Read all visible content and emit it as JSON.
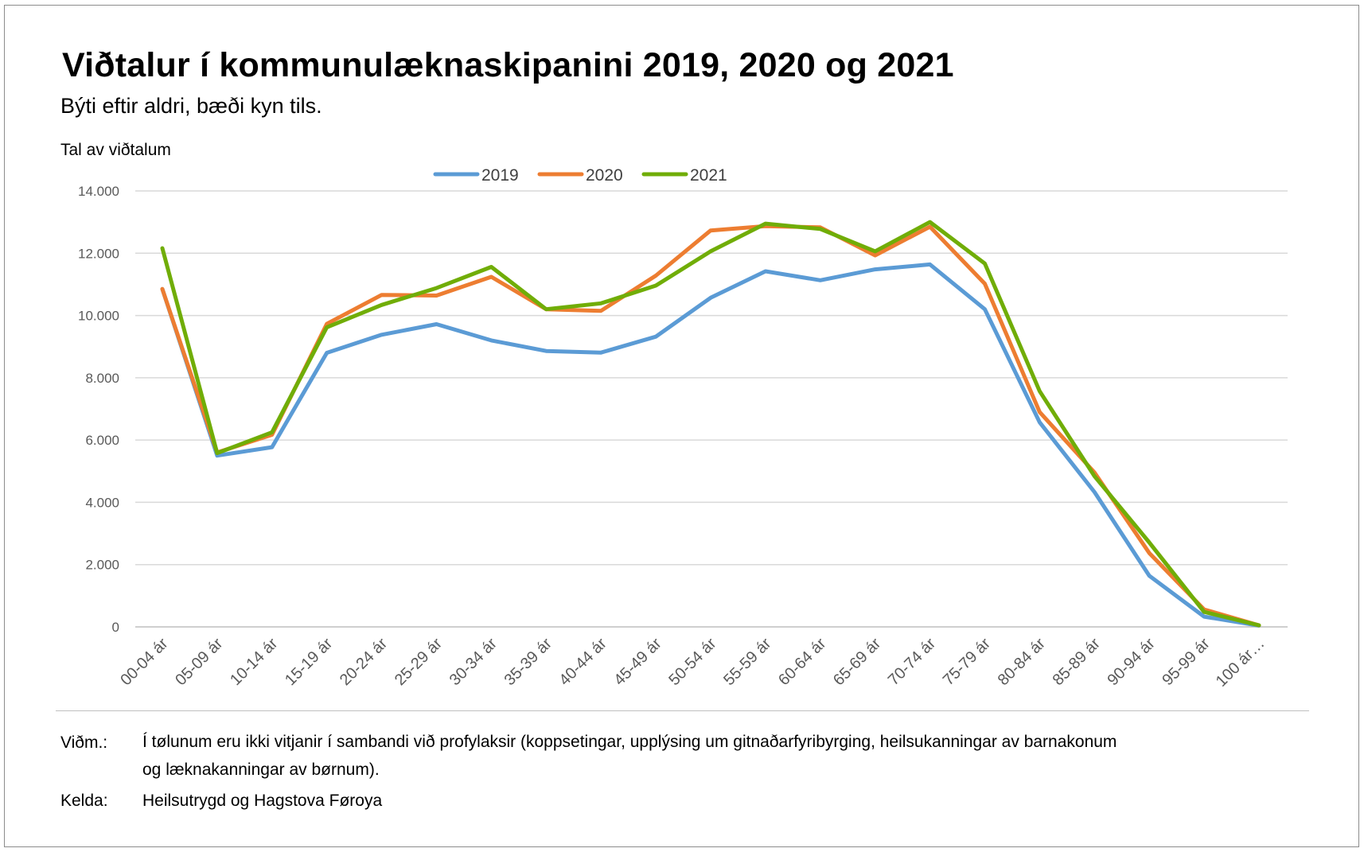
{
  "header": {
    "title": "Viðtalur í kommunulæknaskipanini 2019, 2020 og 2021",
    "subtitle": "Býti eftir aldri, bæði kyn tils."
  },
  "footer": {
    "note_label": "Viðm.:",
    "note_text": "Í tølunum eru ikki vitjanir í sambandi við profylaksir (koppsetingar, upplýsing um gitnaðarfyribyrging, heilsukanningar av barnakonum og læknakanningar av børnum).",
    "source_label": "Kelda:",
    "source_text": "Heilsutrygd og Hagstova Føroya"
  },
  "chart_data": {
    "type": "line",
    "title": "Viðtalur í kommunulæknaskipanini 2019, 2020 og 2021",
    "subtitle": "Býti eftir aldri, bæði kyn tils.",
    "ylabel": "Tal av viðtalum",
    "xlabel": "",
    "ylim": [
      0,
      14000
    ],
    "yticks": [
      0,
      2000,
      4000,
      6000,
      8000,
      10000,
      12000,
      14000
    ],
    "ytick_labels": [
      "0",
      "2.000",
      "4.000",
      "6.000",
      "8.000",
      "10.000",
      "12.000",
      "14.000"
    ],
    "grid": true,
    "legend_position": "top",
    "categories": [
      "00-04 ár",
      "05-09 ár",
      "10-14 ár",
      "15-19 ár",
      "20-24 ár",
      "25-29 ár",
      "30-34 ár",
      "35-39 ár",
      "40-44 ár",
      "45-49 ár",
      "50-54 ár",
      "55-59 ár",
      "60-64 ár",
      "65-69 ár",
      "70-74 ár",
      "75-79 ár",
      "80-84 ár",
      "85-89 ár",
      "90-94 ár",
      "95-99 ár",
      "100 ár…"
    ],
    "series": [
      {
        "name": "2019",
        "color": "#5b9bd5",
        "values": [
          10850,
          5500,
          5770,
          8800,
          9380,
          9720,
          9200,
          8860,
          8810,
          9320,
          10570,
          11420,
          11130,
          11480,
          11640,
          10200,
          6570,
          4330,
          1640,
          330,
          40
        ]
      },
      {
        "name": "2020",
        "color": "#ed7d31",
        "values": [
          10850,
          5600,
          6170,
          9730,
          10660,
          10640,
          11240,
          10200,
          10150,
          11280,
          12730,
          12870,
          12830,
          11930,
          12850,
          11020,
          6900,
          4960,
          2370,
          560,
          50
        ]
      },
      {
        "name": "2021",
        "color": "#70ad07",
        "values": [
          12160,
          5580,
          6250,
          9620,
          10340,
          10880,
          11560,
          10200,
          10390,
          10960,
          12060,
          12950,
          12780,
          12060,
          13000,
          11670,
          7570,
          4840,
          2710,
          480,
          50
        ]
      }
    ]
  }
}
